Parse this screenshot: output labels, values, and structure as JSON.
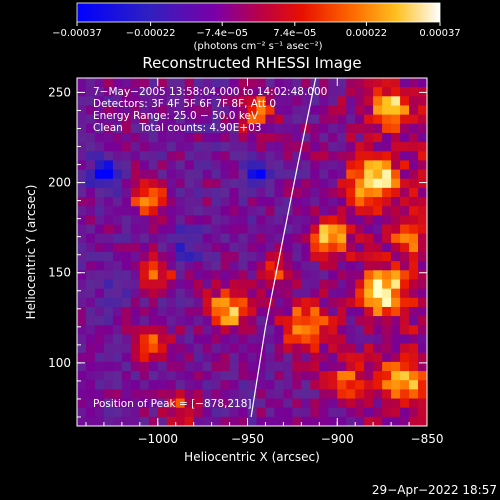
{
  "chart_data": {
    "type": "heatmap",
    "title": "Reconstructed RHESSI Image",
    "xlabel": "Heliocentric X (arcsec)",
    "ylabel": "Heliocentric Y (arcsec)",
    "xlim": [
      -1045,
      -850
    ],
    "ylim": [
      65,
      258
    ],
    "x_ticks": [
      -1000,
      -950,
      -900,
      -850
    ],
    "x_tick_labels": [
      "−1000",
      "−950",
      "−900",
      "−850"
    ],
    "y_ticks": [
      100,
      150,
      200,
      250
    ],
    "y_tick_labels": [
      "100",
      "150",
      "200",
      "250"
    ],
    "colorbar": {
      "range": [
        -0.00037,
        0.00037
      ],
      "ticks": [
        -0.00037,
        -0.00022,
        -7.4e-05,
        7.4e-05,
        0.00022,
        0.00037
      ],
      "tick_labels": [
        "−0.00037",
        "−0.00022",
        "−7.4e−05",
        "7.4e−05",
        "0.00022",
        "0.00037"
      ],
      "units": "(photons cm⁻² s⁻¹ asec⁻²)",
      "colors": [
        "#0000ff",
        "#5a20a0",
        "#8000a0",
        "#c8000c",
        "#ff5000",
        "#ffa000",
        "#ffff80",
        "#ffffff"
      ]
    },
    "annotations": [
      "7−May−2005 13:58:04.000 to 14:02:48.000",
      "Detectors: 3F 4F 5F 6F 7F 8F, Att 0",
      "Energy Range: 25.0 − 50.0 keV",
      "Clean     Total counts: 4.90E+03"
    ],
    "peak_label": "Position of Peak = [−878,218]",
    "peak": [
      -878,
      218
    ],
    "limb": [
      [
        -948,
        70
      ],
      [
        -940,
        120
      ],
      [
        -930,
        170
      ],
      [
        -922,
        210
      ],
      [
        -912,
        258
      ]
    ],
    "intensity_grid_note": "",
    "grid": {
      "nx": 39,
      "ny": 38,
      "bright_regions": [
        {
          "x": -1005,
          "y": 190,
          "r": 10,
          "v": 0.7
        },
        {
          "x": -1000,
          "y": 150,
          "r": 9,
          "v": 0.6
        },
        {
          "x": -1003,
          "y": 110,
          "r": 10,
          "v": 0.65
        },
        {
          "x": -985,
          "y": 75,
          "r": 9,
          "v": 0.5
        },
        {
          "x": -960,
          "y": 130,
          "r": 12,
          "v": 0.85
        },
        {
          "x": -945,
          "y": 240,
          "r": 10,
          "v": 0.7
        },
        {
          "x": -935,
          "y": 150,
          "r": 8,
          "v": 0.6
        },
        {
          "x": -918,
          "y": 120,
          "r": 12,
          "v": 0.8
        },
        {
          "x": -905,
          "y": 170,
          "r": 11,
          "v": 0.85
        },
        {
          "x": -895,
          "y": 90,
          "r": 9,
          "v": 0.6
        },
        {
          "x": -880,
          "y": 200,
          "r": 12,
          "v": 1.0
        },
        {
          "x": -870,
          "y": 240,
          "r": 10,
          "v": 0.8
        },
        {
          "x": -875,
          "y": 140,
          "r": 12,
          "v": 0.9
        },
        {
          "x": -865,
          "y": 90,
          "r": 10,
          "v": 0.8
        },
        {
          "x": -860,
          "y": 170,
          "r": 8,
          "v": 0.6
        }
      ],
      "dark_regions": [
        {
          "x": -1030,
          "y": 205,
          "r": 8,
          "v": -0.9
        },
        {
          "x": -985,
          "y": 165,
          "r": 9,
          "v": -0.4
        },
        {
          "x": -945,
          "y": 205,
          "r": 6,
          "v": -0.9
        },
        {
          "x": -1025,
          "y": 145,
          "r": 8,
          "v": -0.3
        }
      ]
    }
  },
  "footer_date": "29−Apr−2022 18:57"
}
